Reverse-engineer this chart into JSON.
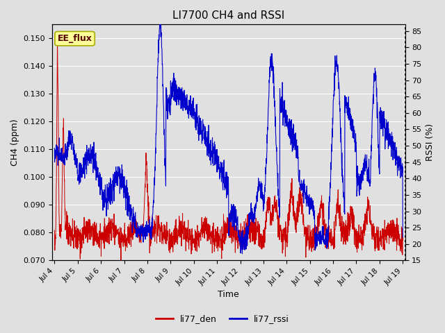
{
  "title": "LI7700 CH4 and RSSI",
  "xlabel": "Time",
  "ylabel_left": "CH4 (ppm)",
  "ylabel_right": "RSSI (%)",
  "annotation": "EE_flux",
  "ylim_left": [
    0.07,
    0.155
  ],
  "ylim_right": [
    15,
    87
  ],
  "yticks_left": [
    0.07,
    0.08,
    0.09,
    0.1,
    0.11,
    0.12,
    0.13,
    0.14,
    0.15
  ],
  "yticks_right": [
    15,
    20,
    25,
    30,
    35,
    40,
    45,
    50,
    55,
    60,
    65,
    70,
    75,
    80,
    85
  ],
  "xtick_labels": [
    "Jul 4",
    "Jul 5",
    "Jul 6",
    "Jul 7",
    "Jul 8",
    "Jul 9",
    "Jul 10",
    "Jul 11",
    "Jul 12",
    "Jul 13",
    "Jul 14",
    "Jul 15",
    "Jul 16",
    "Jul 17",
    "Jul 18",
    "Jul 19"
  ],
  "color_ch4": "#cc0000",
  "color_rssi": "#0000cc",
  "legend_labels": [
    "li77_den",
    "li77_rssi"
  ],
  "bg_color": "#e0e0e0",
  "grid_color": "#ffffff",
  "annotation_bg": "#ffff99",
  "annotation_border": "#aaaa00",
  "fig_bg": "#e0e0e0"
}
